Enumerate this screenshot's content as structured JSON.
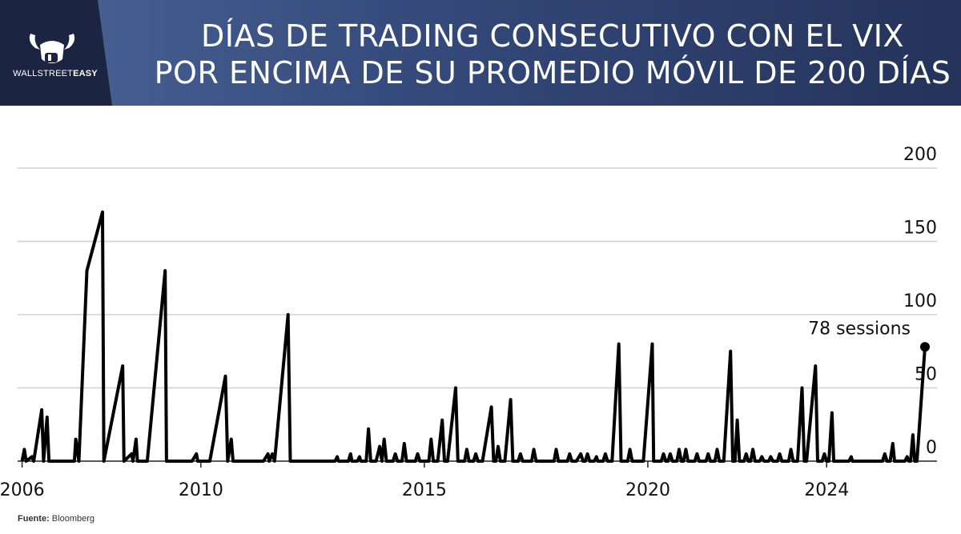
{
  "header": {
    "logo_text_light": "WALLSTREET",
    "logo_text_bold": "EASY",
    "title_line1": "DÍAS DE TRADING CONSECUTIVO CON EL VIX",
    "title_line2": "POR ENCIMA DE SU PROMEDIO MÓVIL DE 200 DÍAS",
    "bar_color": "#2b3a64",
    "logo_bg_color": "#1b2440"
  },
  "source": {
    "label": "Fuente:",
    "name": "Bloomberg"
  },
  "chart_data": {
    "type": "line",
    "title": "DÍAS DE TRADING CONSECUTIVO CON EL VIX POR ENCIMA DE SU PROMEDIO MÓVIL DE 200 DÍAS",
    "xlabel": "",
    "ylabel": "",
    "xlim": [
      2005.9,
      2026.2
    ],
    "ylim": [
      0,
      200
    ],
    "x_ticks": [
      2006,
      2010,
      2015,
      2020,
      2024
    ],
    "y_ticks": [
      0,
      50,
      100,
      150,
      200
    ],
    "grid": true,
    "y_axis_side": "right",
    "line_color": "#000000",
    "series": [
      {
        "name": "Días consecutivos",
        "points": [
          [
            2006.0,
            0
          ],
          [
            2006.05,
            8
          ],
          [
            2006.09,
            0
          ],
          [
            2006.22,
            3
          ],
          [
            2006.26,
            0
          ],
          [
            2006.44,
            35
          ],
          [
            2006.48,
            0
          ],
          [
            2006.56,
            30
          ],
          [
            2006.6,
            0
          ],
          [
            2007.17,
            0
          ],
          [
            2007.2,
            15
          ],
          [
            2007.27,
            0
          ],
          [
            2007.45,
            130
          ],
          [
            2007.8,
            170
          ],
          [
            2007.83,
            0
          ],
          [
            2008.25,
            65
          ],
          [
            2008.28,
            0
          ],
          [
            2008.45,
            5
          ],
          [
            2008.48,
            0
          ],
          [
            2008.55,
            15
          ],
          [
            2008.58,
            0
          ],
          [
            2008.8,
            0
          ],
          [
            2009.2,
            130
          ],
          [
            2009.23,
            0
          ],
          [
            2009.8,
            0
          ],
          [
            2009.9,
            5
          ],
          [
            2009.93,
            0
          ],
          [
            2010.2,
            0
          ],
          [
            2010.55,
            58
          ],
          [
            2010.6,
            0
          ],
          [
            2010.68,
            15
          ],
          [
            2010.72,
            0
          ],
          [
            2011.4,
            0
          ],
          [
            2011.5,
            5
          ],
          [
            2011.53,
            0
          ],
          [
            2011.6,
            5
          ],
          [
            2011.65,
            0
          ],
          [
            2011.95,
            100
          ],
          [
            2012.0,
            0
          ],
          [
            2013.0,
            0
          ],
          [
            2013.05,
            3
          ],
          [
            2013.08,
            0
          ],
          [
            2013.3,
            0
          ],
          [
            2013.35,
            5
          ],
          [
            2013.38,
            0
          ],
          [
            2013.5,
            0
          ],
          [
            2013.55,
            3
          ],
          [
            2013.58,
            0
          ],
          [
            2013.7,
            0
          ],
          [
            2013.75,
            22
          ],
          [
            2013.8,
            0
          ],
          [
            2013.92,
            0
          ],
          [
            2014.0,
            10
          ],
          [
            2014.05,
            0
          ],
          [
            2014.1,
            15
          ],
          [
            2014.15,
            0
          ],
          [
            2014.3,
            0
          ],
          [
            2014.35,
            5
          ],
          [
            2014.4,
            0
          ],
          [
            2014.5,
            0
          ],
          [
            2014.55,
            12
          ],
          [
            2014.6,
            0
          ],
          [
            2014.8,
            0
          ],
          [
            2014.85,
            5
          ],
          [
            2014.9,
            0
          ],
          [
            2015.1,
            0
          ],
          [
            2015.15,
            15
          ],
          [
            2015.2,
            0
          ],
          [
            2015.3,
            0
          ],
          [
            2015.4,
            28
          ],
          [
            2015.45,
            0
          ],
          [
            2015.52,
            0
          ],
          [
            2015.7,
            50
          ],
          [
            2015.75,
            0
          ],
          [
            2015.9,
            0
          ],
          [
            2015.95,
            8
          ],
          [
            2016.0,
            0
          ],
          [
            2016.1,
            0
          ],
          [
            2016.15,
            5
          ],
          [
            2016.2,
            0
          ],
          [
            2016.3,
            0
          ],
          [
            2016.5,
            37
          ],
          [
            2016.55,
            0
          ],
          [
            2016.6,
            0
          ],
          [
            2016.65,
            10
          ],
          [
            2016.7,
            0
          ],
          [
            2016.8,
            0
          ],
          [
            2016.93,
            42
          ],
          [
            2016.98,
            0
          ],
          [
            2017.1,
            0
          ],
          [
            2017.15,
            5
          ],
          [
            2017.2,
            0
          ],
          [
            2017.4,
            0
          ],
          [
            2017.45,
            8
          ],
          [
            2017.5,
            0
          ],
          [
            2017.9,
            0
          ],
          [
            2017.95,
            8
          ],
          [
            2018.0,
            0
          ],
          [
            2018.2,
            0
          ],
          [
            2018.25,
            5
          ],
          [
            2018.3,
            0
          ],
          [
            2018.4,
            0
          ],
          [
            2018.5,
            5
          ],
          [
            2018.55,
            0
          ],
          [
            2018.6,
            0
          ],
          [
            2018.65,
            5
          ],
          [
            2018.7,
            0
          ],
          [
            2018.8,
            0
          ],
          [
            2018.85,
            3
          ],
          [
            2018.88,
            0
          ],
          [
            2019.0,
            0
          ],
          [
            2019.05,
            5
          ],
          [
            2019.1,
            0
          ],
          [
            2019.2,
            0
          ],
          [
            2019.35,
            80
          ],
          [
            2019.4,
            0
          ],
          [
            2019.55,
            0
          ],
          [
            2019.6,
            8
          ],
          [
            2019.65,
            0
          ],
          [
            2019.9,
            0
          ],
          [
            2020.1,
            80
          ],
          [
            2020.13,
            0
          ],
          [
            2020.3,
            0
          ],
          [
            2020.35,
            5
          ],
          [
            2020.4,
            0
          ],
          [
            2020.45,
            0
          ],
          [
            2020.5,
            5
          ],
          [
            2020.55,
            0
          ],
          [
            2020.65,
            0
          ],
          [
            2020.7,
            8
          ],
          [
            2020.75,
            0
          ],
          [
            2020.8,
            0
          ],
          [
            2020.85,
            8
          ],
          [
            2020.9,
            0
          ],
          [
            2021.05,
            0
          ],
          [
            2021.1,
            5
          ],
          [
            2021.15,
            0
          ],
          [
            2021.3,
            0
          ],
          [
            2021.35,
            5
          ],
          [
            2021.4,
            0
          ],
          [
            2021.5,
            0
          ],
          [
            2021.55,
            8
          ],
          [
            2021.6,
            0
          ],
          [
            2021.7,
            0
          ],
          [
            2021.85,
            75
          ],
          [
            2021.9,
            0
          ],
          [
            2021.95,
            0
          ],
          [
            2022.0,
            28
          ],
          [
            2022.05,
            0
          ],
          [
            2022.15,
            0
          ],
          [
            2022.2,
            5
          ],
          [
            2022.25,
            0
          ],
          [
            2022.3,
            0
          ],
          [
            2022.35,
            8
          ],
          [
            2022.4,
            0
          ],
          [
            2022.5,
            0
          ],
          [
            2022.55,
            3
          ],
          [
            2022.6,
            0
          ],
          [
            2022.7,
            0
          ],
          [
            2022.75,
            3
          ],
          [
            2022.8,
            0
          ],
          [
            2022.9,
            0
          ],
          [
            2022.95,
            5
          ],
          [
            2023.0,
            0
          ],
          [
            2023.15,
            0
          ],
          [
            2023.2,
            8
          ],
          [
            2023.25,
            0
          ],
          [
            2023.35,
            0
          ],
          [
            2023.45,
            50
          ],
          [
            2023.5,
            0
          ],
          [
            2023.55,
            0
          ],
          [
            2023.75,
            65
          ],
          [
            2023.8,
            0
          ],
          [
            2023.9,
            0
          ],
          [
            2023.95,
            5
          ],
          [
            2024.0,
            0
          ],
          [
            2024.05,
            0
          ],
          [
            2024.12,
            33
          ],
          [
            2024.16,
            0
          ],
          [
            2024.5,
            0
          ],
          [
            2024.55,
            3
          ],
          [
            2024.58,
            0
          ],
          [
            2025.25,
            0
          ],
          [
            2025.3,
            5
          ],
          [
            2025.35,
            0
          ],
          [
            2025.42,
            0
          ],
          [
            2025.48,
            12
          ],
          [
            2025.52,
            0
          ],
          [
            2025.75,
            0
          ],
          [
            2025.8,
            3
          ],
          [
            2025.84,
            0
          ],
          [
            2025.88,
            0
          ],
          [
            2025.93,
            18
          ],
          [
            2025.97,
            0
          ],
          [
            2026.02,
            0
          ],
          [
            2026.2,
            78
          ]
        ]
      }
    ],
    "annotations": [
      {
        "x": 2026.2,
        "y": 78,
        "text": "78 sessions"
      }
    ]
  }
}
